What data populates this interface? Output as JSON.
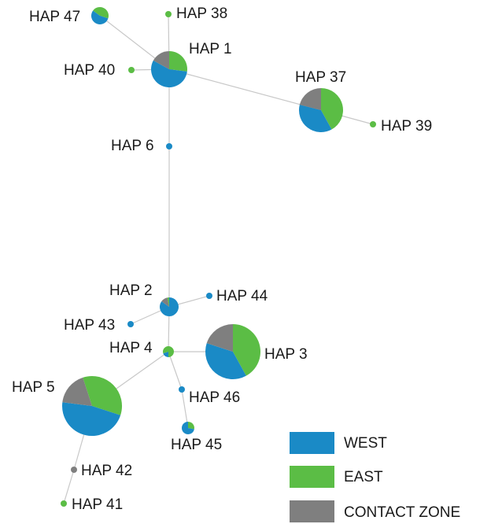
{
  "nodes": [
    "HAP 47",
    "HAP 38",
    "HAP 1",
    "HAP 40",
    "HAP 37",
    "HAP 39",
    "HAP 6",
    "HAP 2",
    "HAP 44",
    "HAP 43",
    "HAP 4",
    "HAP 3",
    "HAP 46",
    "HAP 45",
    "HAP 5",
    "HAP 42",
    "HAP 41"
  ],
  "legend": [
    "WEST",
    "EAST",
    "CONTACT ZONE"
  ]
}
